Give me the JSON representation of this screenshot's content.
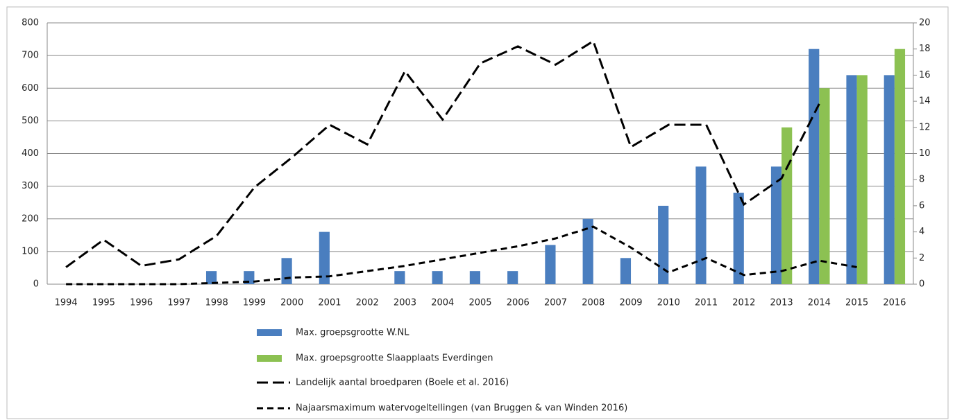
{
  "chart_data": {
    "type": "bar",
    "categories": [
      "1994",
      "1995",
      "1996",
      "1997",
      "1998",
      "1999",
      "2000",
      "2001",
      "2002",
      "2003",
      "2004",
      "2005",
      "2006",
      "2007",
      "2008",
      "2009",
      "2010",
      "2011",
      "2012",
      "2013",
      "2014",
      "2015",
      "2016"
    ],
    "series": [
      {
        "name": "Max. groepsgrootte W.NL",
        "type": "bar",
        "color": "#4a7ebf",
        "values": [
          0,
          0,
          0,
          0,
          40,
          40,
          80,
          160,
          0,
          40,
          40,
          40,
          40,
          120,
          200,
          80,
          240,
          360,
          280,
          360,
          720,
          640,
          640
        ]
      },
      {
        "name": "Max. groepsgrootte Slaapplaats Everdingen",
        "type": "bar",
        "color": "#8cc152",
        "values": [
          null,
          null,
          null,
          null,
          null,
          null,
          null,
          null,
          null,
          null,
          null,
          null,
          null,
          null,
          null,
          null,
          null,
          null,
          null,
          480,
          600,
          640,
          720
        ]
      },
      {
        "name": "Landelijk aantal  broedparen (Boele et al. 2016)",
        "type": "line",
        "axis": "y2",
        "color": "#000000",
        "dash": "long",
        "values": [
          1.3,
          3.4,
          1.4,
          1.9,
          3.7,
          7.4,
          9.7,
          12.2,
          10.7,
          16.3,
          12.6,
          16.9,
          18.2,
          16.8,
          18.6,
          10.5,
          12.2,
          12.2,
          6.1,
          8.1,
          13.8,
          null,
          null
        ]
      },
      {
        "name": "Najaarsmaximum watervogeltellingen (van Bruggen & van Winden 2016)",
        "type": "line",
        "axis": "y2",
        "color": "#000000",
        "dash": "short",
        "values": [
          0,
          0,
          0,
          0,
          0.1,
          0.2,
          0.5,
          0.6,
          1.0,
          1.4,
          1.9,
          2.4,
          2.9,
          3.5,
          4.4,
          2.8,
          0.9,
          2.0,
          0.7,
          1.0,
          1.8,
          1.3,
          null
        ]
      }
    ],
    "ylim": [
      0,
      800
    ],
    "yticks": [
      0,
      100,
      200,
      300,
      400,
      500,
      600,
      700,
      800
    ],
    "y2lim": [
      0,
      20
    ],
    "y2ticks": [
      0,
      2,
      4,
      6,
      8,
      10,
      12,
      14,
      16,
      18,
      20
    ],
    "grid": true
  }
}
